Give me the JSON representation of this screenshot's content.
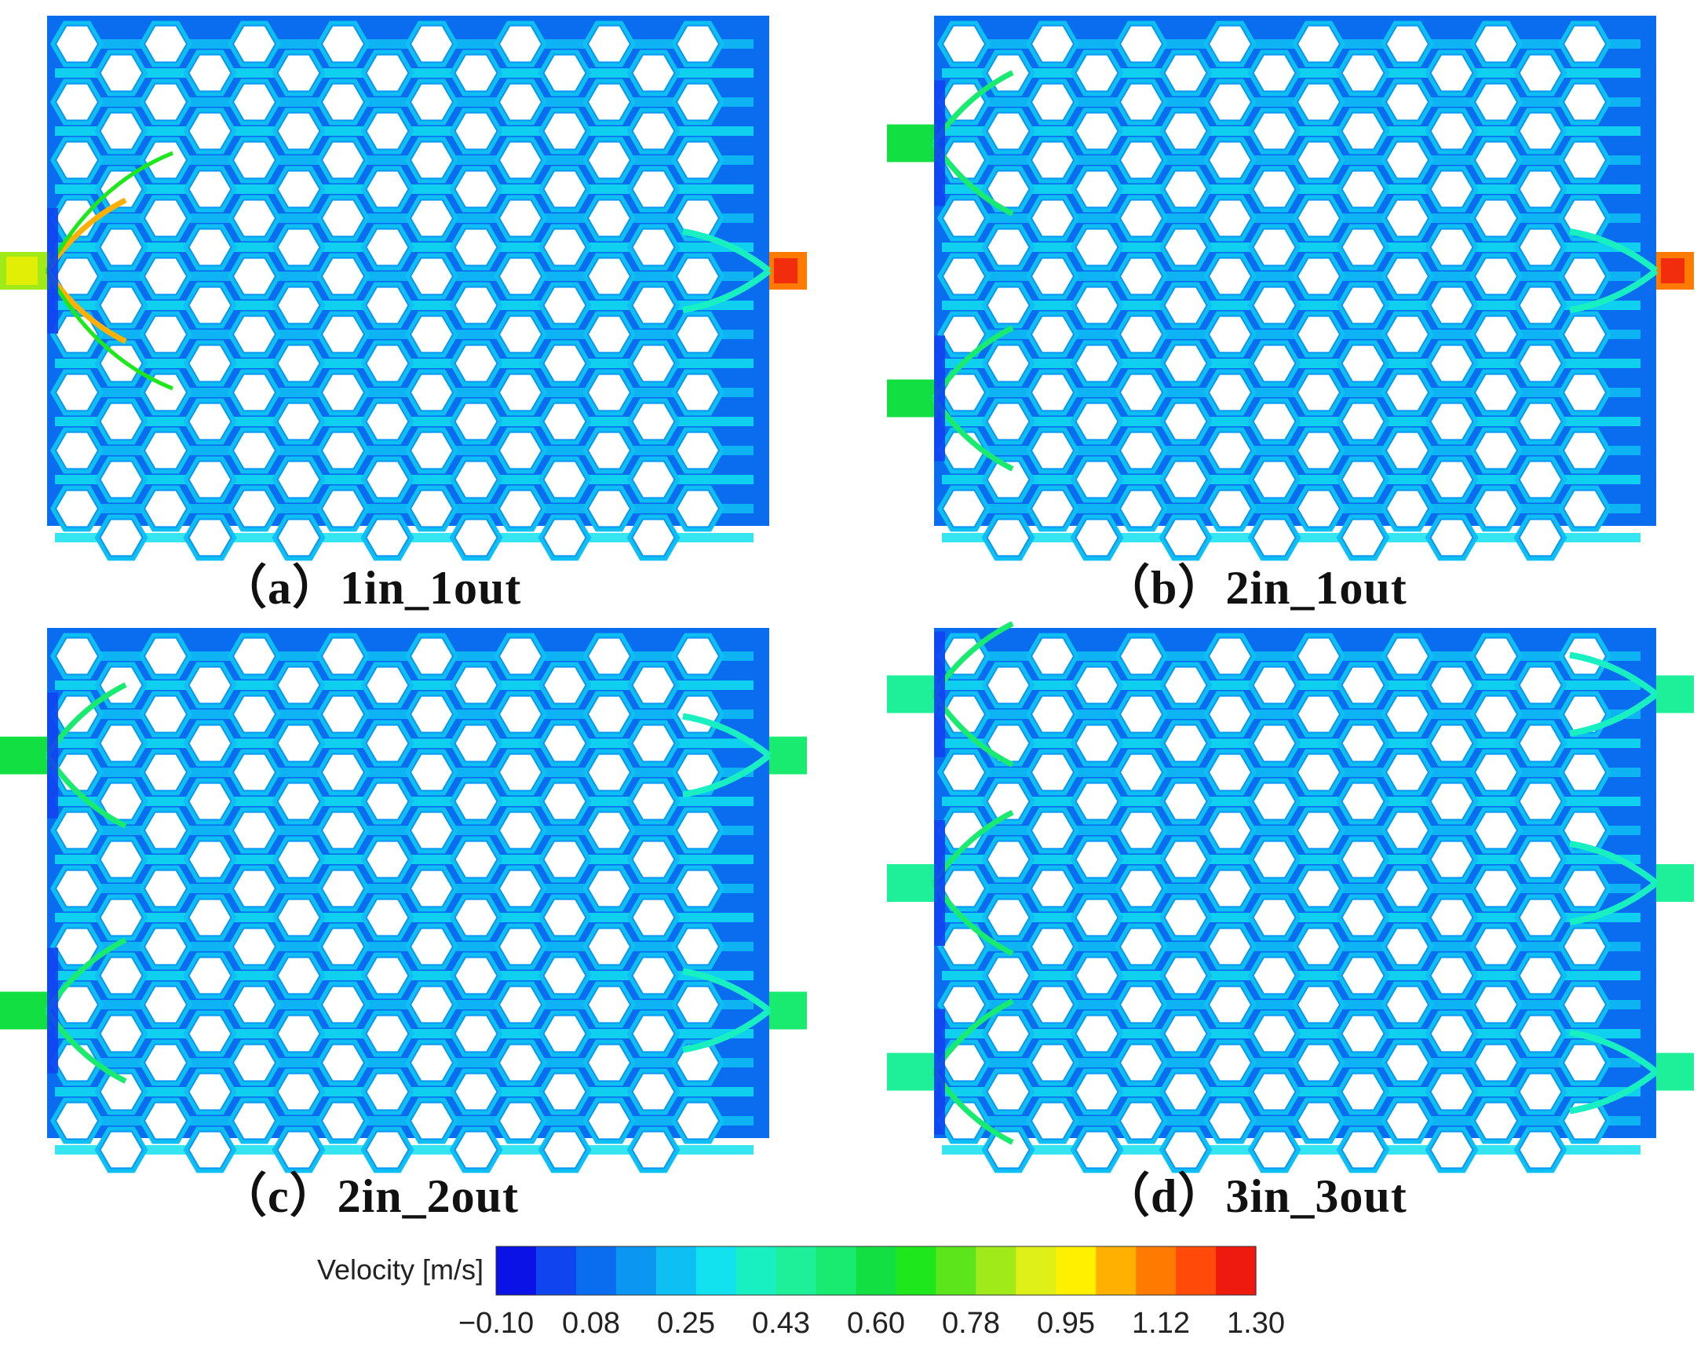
{
  "colormap": [
    "#0b12e6",
    "#0f44ef",
    "#0a6df0",
    "#0b96f1",
    "#0ebff3",
    "#12e2ef",
    "#19f0c2",
    "#1ef09a",
    "#19ea70",
    "#12e042",
    "#1ee81c",
    "#5be51a",
    "#a0ea1a",
    "#dff019",
    "#fff000",
    "#ffb000",
    "#ff7a00",
    "#ff4a0a",
    "#ee1a10"
  ],
  "figure": {
    "panels": [
      {
        "id": "a",
        "label": "（a）1in_1out",
        "inlets": [
          0.5
        ],
        "outlets": [
          0.5
        ],
        "regime": "high"
      },
      {
        "id": "b",
        "label": "（b）2in_1out",
        "inlets": [
          0.25,
          0.75
        ],
        "outlets": [
          0.5
        ],
        "regime": "mid"
      },
      {
        "id": "c",
        "label": "（c）2in_2out",
        "inlets": [
          0.25,
          0.75
        ],
        "outlets": [
          0.25,
          0.75
        ],
        "regime": "mid"
      },
      {
        "id": "d",
        "label": "（d）3in_3out",
        "inlets": [
          0.13,
          0.5,
          0.87
        ],
        "outlets": [
          0.13,
          0.5,
          0.87
        ],
        "regime": "low"
      }
    ]
  },
  "colorbar": {
    "title": "Velocity [m/s]",
    "ticks": [
      "−0.10",
      "0.08",
      "0.25",
      "0.43",
      "0.60",
      "0.78",
      "0.95",
      "1.12",
      "1.30"
    ]
  }
}
